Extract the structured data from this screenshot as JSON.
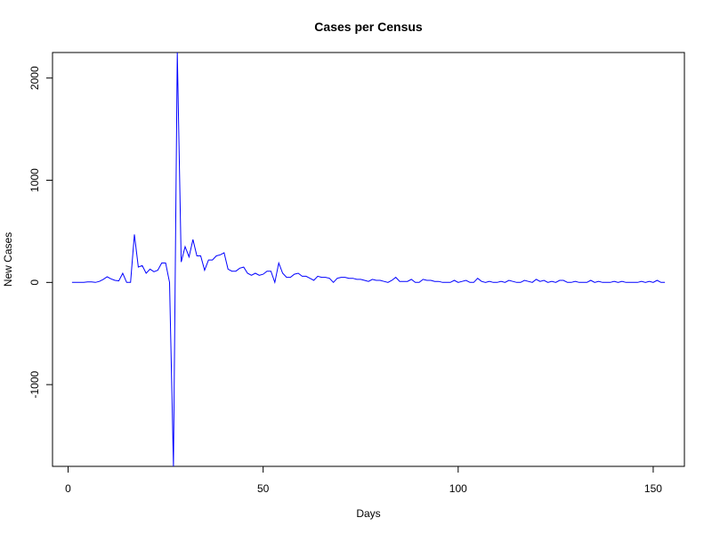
{
  "chart_data": {
    "type": "line",
    "title": "Cases per Census",
    "xlabel": "Days",
    "ylabel": "New Cases",
    "xlim": [
      -4,
      158
    ],
    "ylim": [
      -1800,
      2250
    ],
    "xticks": [
      0,
      50,
      100,
      150
    ],
    "yticks": [
      -1000,
      0,
      1000,
      2000
    ],
    "grid": false,
    "series": [
      {
        "color": "#0000ff",
        "x": [
          1,
          2,
          3,
          4,
          5,
          6,
          7,
          8,
          9,
          10,
          11,
          12,
          13,
          14,
          15,
          16,
          17,
          18,
          19,
          20,
          21,
          22,
          23,
          24,
          25,
          26,
          27,
          28,
          29,
          30,
          31,
          32,
          33,
          34,
          35,
          36,
          37,
          38,
          39,
          40,
          41,
          42,
          43,
          44,
          45,
          46,
          47,
          48,
          49,
          50,
          51,
          52,
          53,
          54,
          55,
          56,
          57,
          58,
          59,
          60,
          61,
          62,
          63,
          64,
          65,
          66,
          67,
          68,
          69,
          70,
          71,
          72,
          73,
          74,
          75,
          76,
          77,
          78,
          79,
          80,
          81,
          82,
          83,
          84,
          85,
          86,
          87,
          88,
          89,
          90,
          91,
          92,
          93,
          94,
          95,
          96,
          97,
          98,
          99,
          100,
          101,
          102,
          103,
          104,
          105,
          106,
          107,
          108,
          109,
          110,
          111,
          112,
          113,
          114,
          115,
          116,
          117,
          118,
          119,
          120,
          121,
          122,
          123,
          124,
          125,
          126,
          127,
          128,
          129,
          130,
          131,
          132,
          133,
          134,
          135,
          136,
          137,
          138,
          139,
          140,
          141,
          142,
          143,
          144,
          145,
          146,
          147,
          148,
          149,
          150,
          151,
          152,
          153
        ],
        "y": [
          0,
          0,
          0,
          0,
          5,
          5,
          0,
          10,
          30,
          55,
          35,
          20,
          15,
          90,
          0,
          0,
          470,
          150,
          165,
          90,
          130,
          105,
          120,
          190,
          190,
          0,
          -1800,
          2250,
          200,
          350,
          250,
          420,
          260,
          260,
          120,
          220,
          220,
          260,
          270,
          290,
          130,
          110,
          110,
          140,
          150,
          90,
          70,
          90,
          70,
          80,
          110,
          110,
          0,
          190,
          90,
          50,
          50,
          80,
          90,
          60,
          60,
          40,
          20,
          60,
          50,
          50,
          40,
          0,
          40,
          50,
          50,
          40,
          40,
          30,
          30,
          20,
          10,
          30,
          20,
          20,
          10,
          0,
          20,
          50,
          10,
          10,
          10,
          30,
          0,
          0,
          30,
          20,
          20,
          10,
          10,
          0,
          0,
          0,
          20,
          0,
          10,
          20,
          0,
          0,
          40,
          10,
          0,
          10,
          0,
          0,
          10,
          0,
          20,
          10,
          0,
          0,
          20,
          10,
          0,
          30,
          10,
          20,
          0,
          10,
          0,
          20,
          20,
          0,
          0,
          10,
          0,
          0,
          0,
          20,
          0,
          10,
          0,
          0,
          0,
          10,
          0,
          10,
          0,
          0,
          0,
          0,
          10,
          0,
          10,
          0,
          20,
          0,
          0
        ]
      }
    ]
  }
}
